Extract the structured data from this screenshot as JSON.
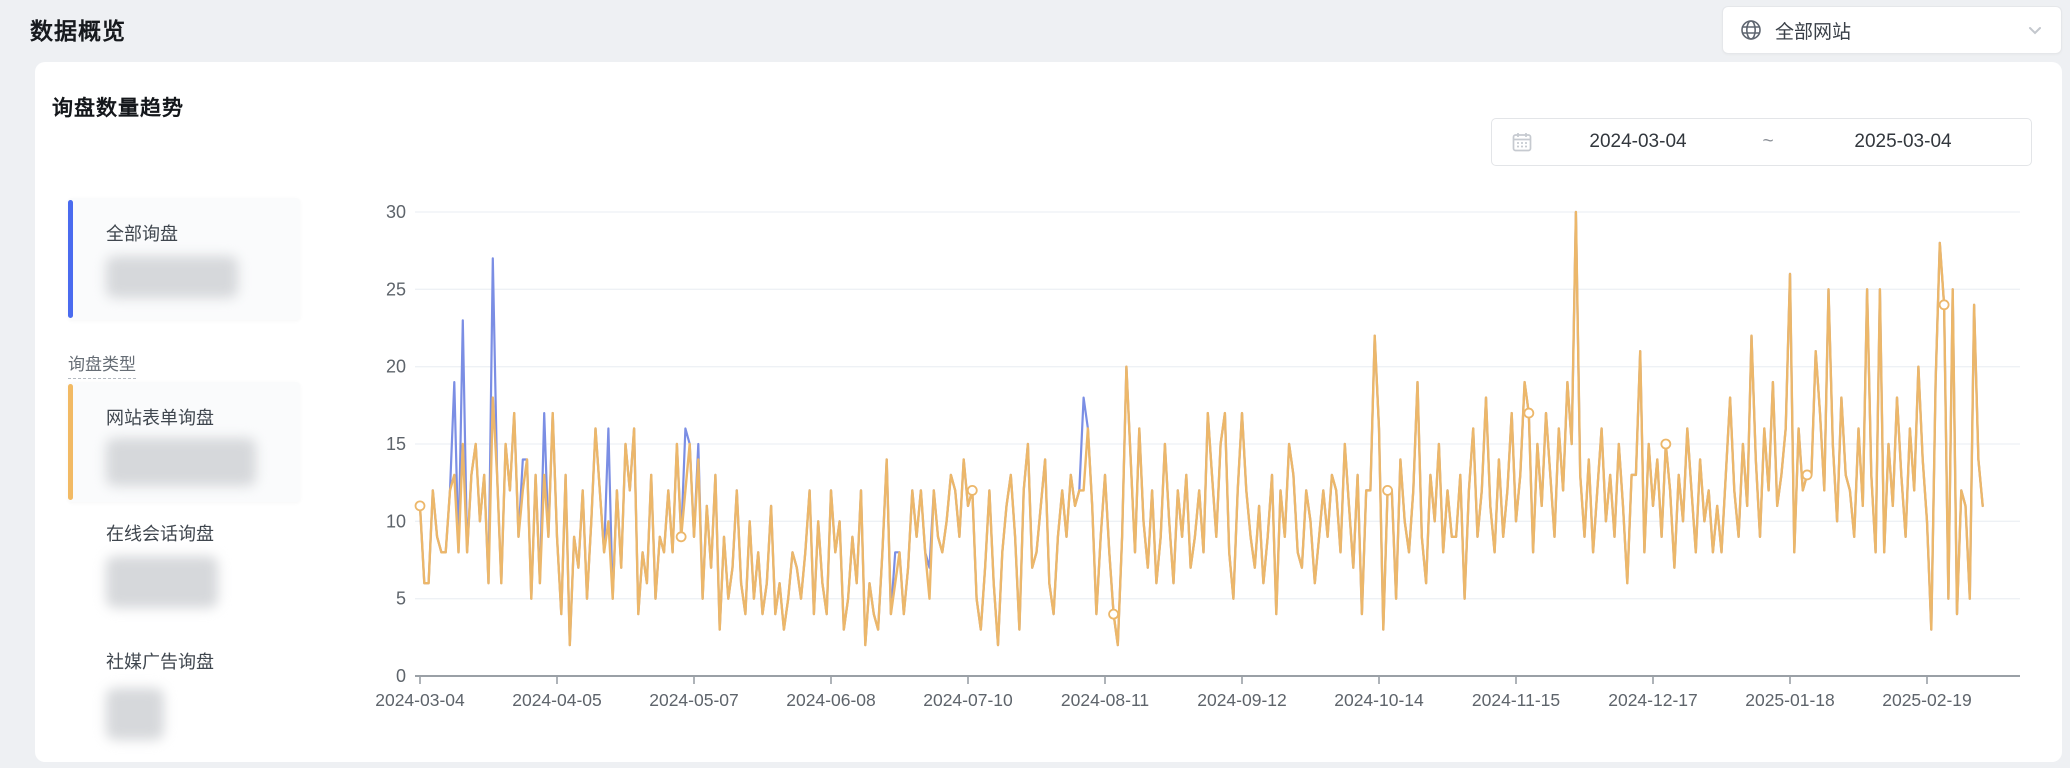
{
  "page": {
    "title": "数据概览"
  },
  "site_selector": {
    "label": "全部网站",
    "icon": "globe-icon"
  },
  "panel": {
    "title": "询盘数量趋势",
    "date_range": {
      "start": "2024-03-04",
      "separator": "~",
      "end": "2025-03-04"
    }
  },
  "sidebar": {
    "total": {
      "label": "全部询盘",
      "accent": "#4a6bef",
      "value_redacted": true
    },
    "section_label": "询盘类型",
    "types": [
      {
        "label": "网站表单询盘",
        "accent": "#f2ba64",
        "value_redacted": true
      },
      {
        "label": "在线会话询盘",
        "value_redacted": true
      },
      {
        "label": "社媒广告询盘",
        "value_redacted": true
      }
    ]
  },
  "chart_data": {
    "type": "line",
    "title": "询盘数量趋势",
    "x_start_date": "2024-03-04",
    "x_end_date": "2025-03-04",
    "x_tick_labels": [
      "2024-03-04",
      "2024-04-05",
      "2024-05-07",
      "2024-06-08",
      "2024-07-10",
      "2024-08-11",
      "2024-09-12",
      "2024-10-14",
      "2024-11-15",
      "2024-12-17",
      "2025-01-18",
      "2025-02-19"
    ],
    "x_tick_day_interval": 32,
    "y_ticks": [
      0,
      5,
      10,
      15,
      20,
      25,
      30
    ],
    "ylim": [
      0,
      30
    ],
    "grid": "horizontal",
    "grid_color": "#eef1f5",
    "axis_color": "#9aa0a6",
    "label_color": "#5e646b",
    "series": [
      {
        "name": "全部询盘",
        "color": "#7b8ee4",
        "derived_from": "网站表单询盘",
        "overrides": {
          "8": 19,
          "10": 23,
          "17": 27,
          "24": 14,
          "29": 17,
          "44": 16,
          "62": 16,
          "65": 15,
          "111": 8,
          "119": 7,
          "155": 18
        }
      },
      {
        "name": "网站表单询盘",
        "color": "#ecb76a",
        "values": [
          11,
          6,
          6,
          12,
          9,
          8,
          8,
          12,
          13,
          8,
          15,
          8,
          13,
          15,
          10,
          13,
          6,
          18,
          13,
          6,
          15,
          12,
          17,
          9,
          12,
          14,
          5,
          13,
          6,
          13,
          9,
          17,
          9,
          4,
          13,
          2,
          9,
          7,
          12,
          5,
          10,
          16,
          12,
          8,
          10,
          5,
          12,
          7,
          15,
          12,
          16,
          4,
          8,
          6,
          13,
          5,
          9,
          8,
          12,
          8,
          15,
          9,
          12,
          15,
          9,
          14,
          5,
          11,
          7,
          13,
          3,
          9,
          5,
          7,
          12,
          6,
          4,
          10,
          5,
          8,
          4,
          6,
          11,
          4,
          6,
          3,
          5,
          8,
          7,
          5,
          8,
          12,
          4,
          10,
          6,
          4,
          12,
          8,
          10,
          3,
          5,
          9,
          6,
          12,
          2,
          6,
          4,
          3,
          8,
          14,
          4,
          6,
          8,
          4,
          7,
          12,
          9,
          12,
          8,
          5,
          12,
          9,
          8,
          10,
          13,
          12,
          9,
          14,
          11,
          12,
          5,
          3,
          7,
          12,
          6,
          2,
          8,
          11,
          13,
          9,
          3,
          12,
          15,
          7,
          8,
          11,
          14,
          6,
          4,
          9,
          12,
          9,
          13,
          11,
          12,
          12,
          16,
          11,
          4,
          9,
          13,
          8,
          4,
          2,
          9,
          20,
          14,
          8,
          16,
          10,
          7,
          12,
          6,
          9,
          15,
          10,
          6,
          12,
          9,
          13,
          7,
          9,
          12,
          8,
          17,
          13,
          9,
          15,
          17,
          8,
          5,
          12,
          17,
          12,
          9,
          7,
          11,
          6,
          9,
          13,
          4,
          12,
          9,
          15,
          13,
          8,
          7,
          12,
          10,
          6,
          9,
          12,
          9,
          13,
          12,
          8,
          15,
          11,
          7,
          13,
          4,
          12,
          12,
          22,
          16,
          3,
          12,
          12,
          5,
          14,
          10,
          8,
          12,
          19,
          9,
          6,
          13,
          10,
          15,
          8,
          12,
          9,
          9,
          13,
          5,
          12,
          16,
          9,
          12,
          18,
          11,
          8,
          14,
          9,
          12,
          17,
          10,
          13,
          19,
          17,
          8,
          15,
          11,
          17,
          13,
          9,
          16,
          12,
          19,
          15,
          30,
          13,
          9,
          14,
          8,
          12,
          16,
          10,
          13,
          9,
          15,
          11,
          6,
          13,
          13,
          21,
          8,
          15,
          11,
          14,
          9,
          15,
          12,
          7,
          13,
          10,
          16,
          12,
          8,
          14,
          10,
          12,
          8,
          11,
          8,
          13,
          18,
          12,
          9,
          15,
          11,
          22,
          14,
          9,
          16,
          12,
          19,
          11,
          13,
          16,
          26,
          8,
          16,
          12,
          13,
          13,
          21,
          17,
          12,
          25,
          15,
          10,
          18,
          13,
          12,
          9,
          16,
          11,
          25,
          13,
          8,
          25,
          8,
          15,
          11,
          18,
          13,
          9,
          16,
          12,
          20,
          14,
          10,
          3,
          19,
          28,
          24,
          5,
          25,
          4,
          12,
          11,
          5,
          24,
          14,
          11
        ]
      }
    ],
    "markers_series": "网站表单询盘",
    "markers": [
      [
        0,
        11
      ],
      [
        61,
        9
      ],
      [
        129,
        12
      ],
      [
        162,
        4
      ],
      [
        226,
        12
      ],
      [
        259,
        17
      ],
      [
        291,
        15
      ],
      [
        324,
        13
      ],
      [
        356,
        24
      ]
    ]
  }
}
